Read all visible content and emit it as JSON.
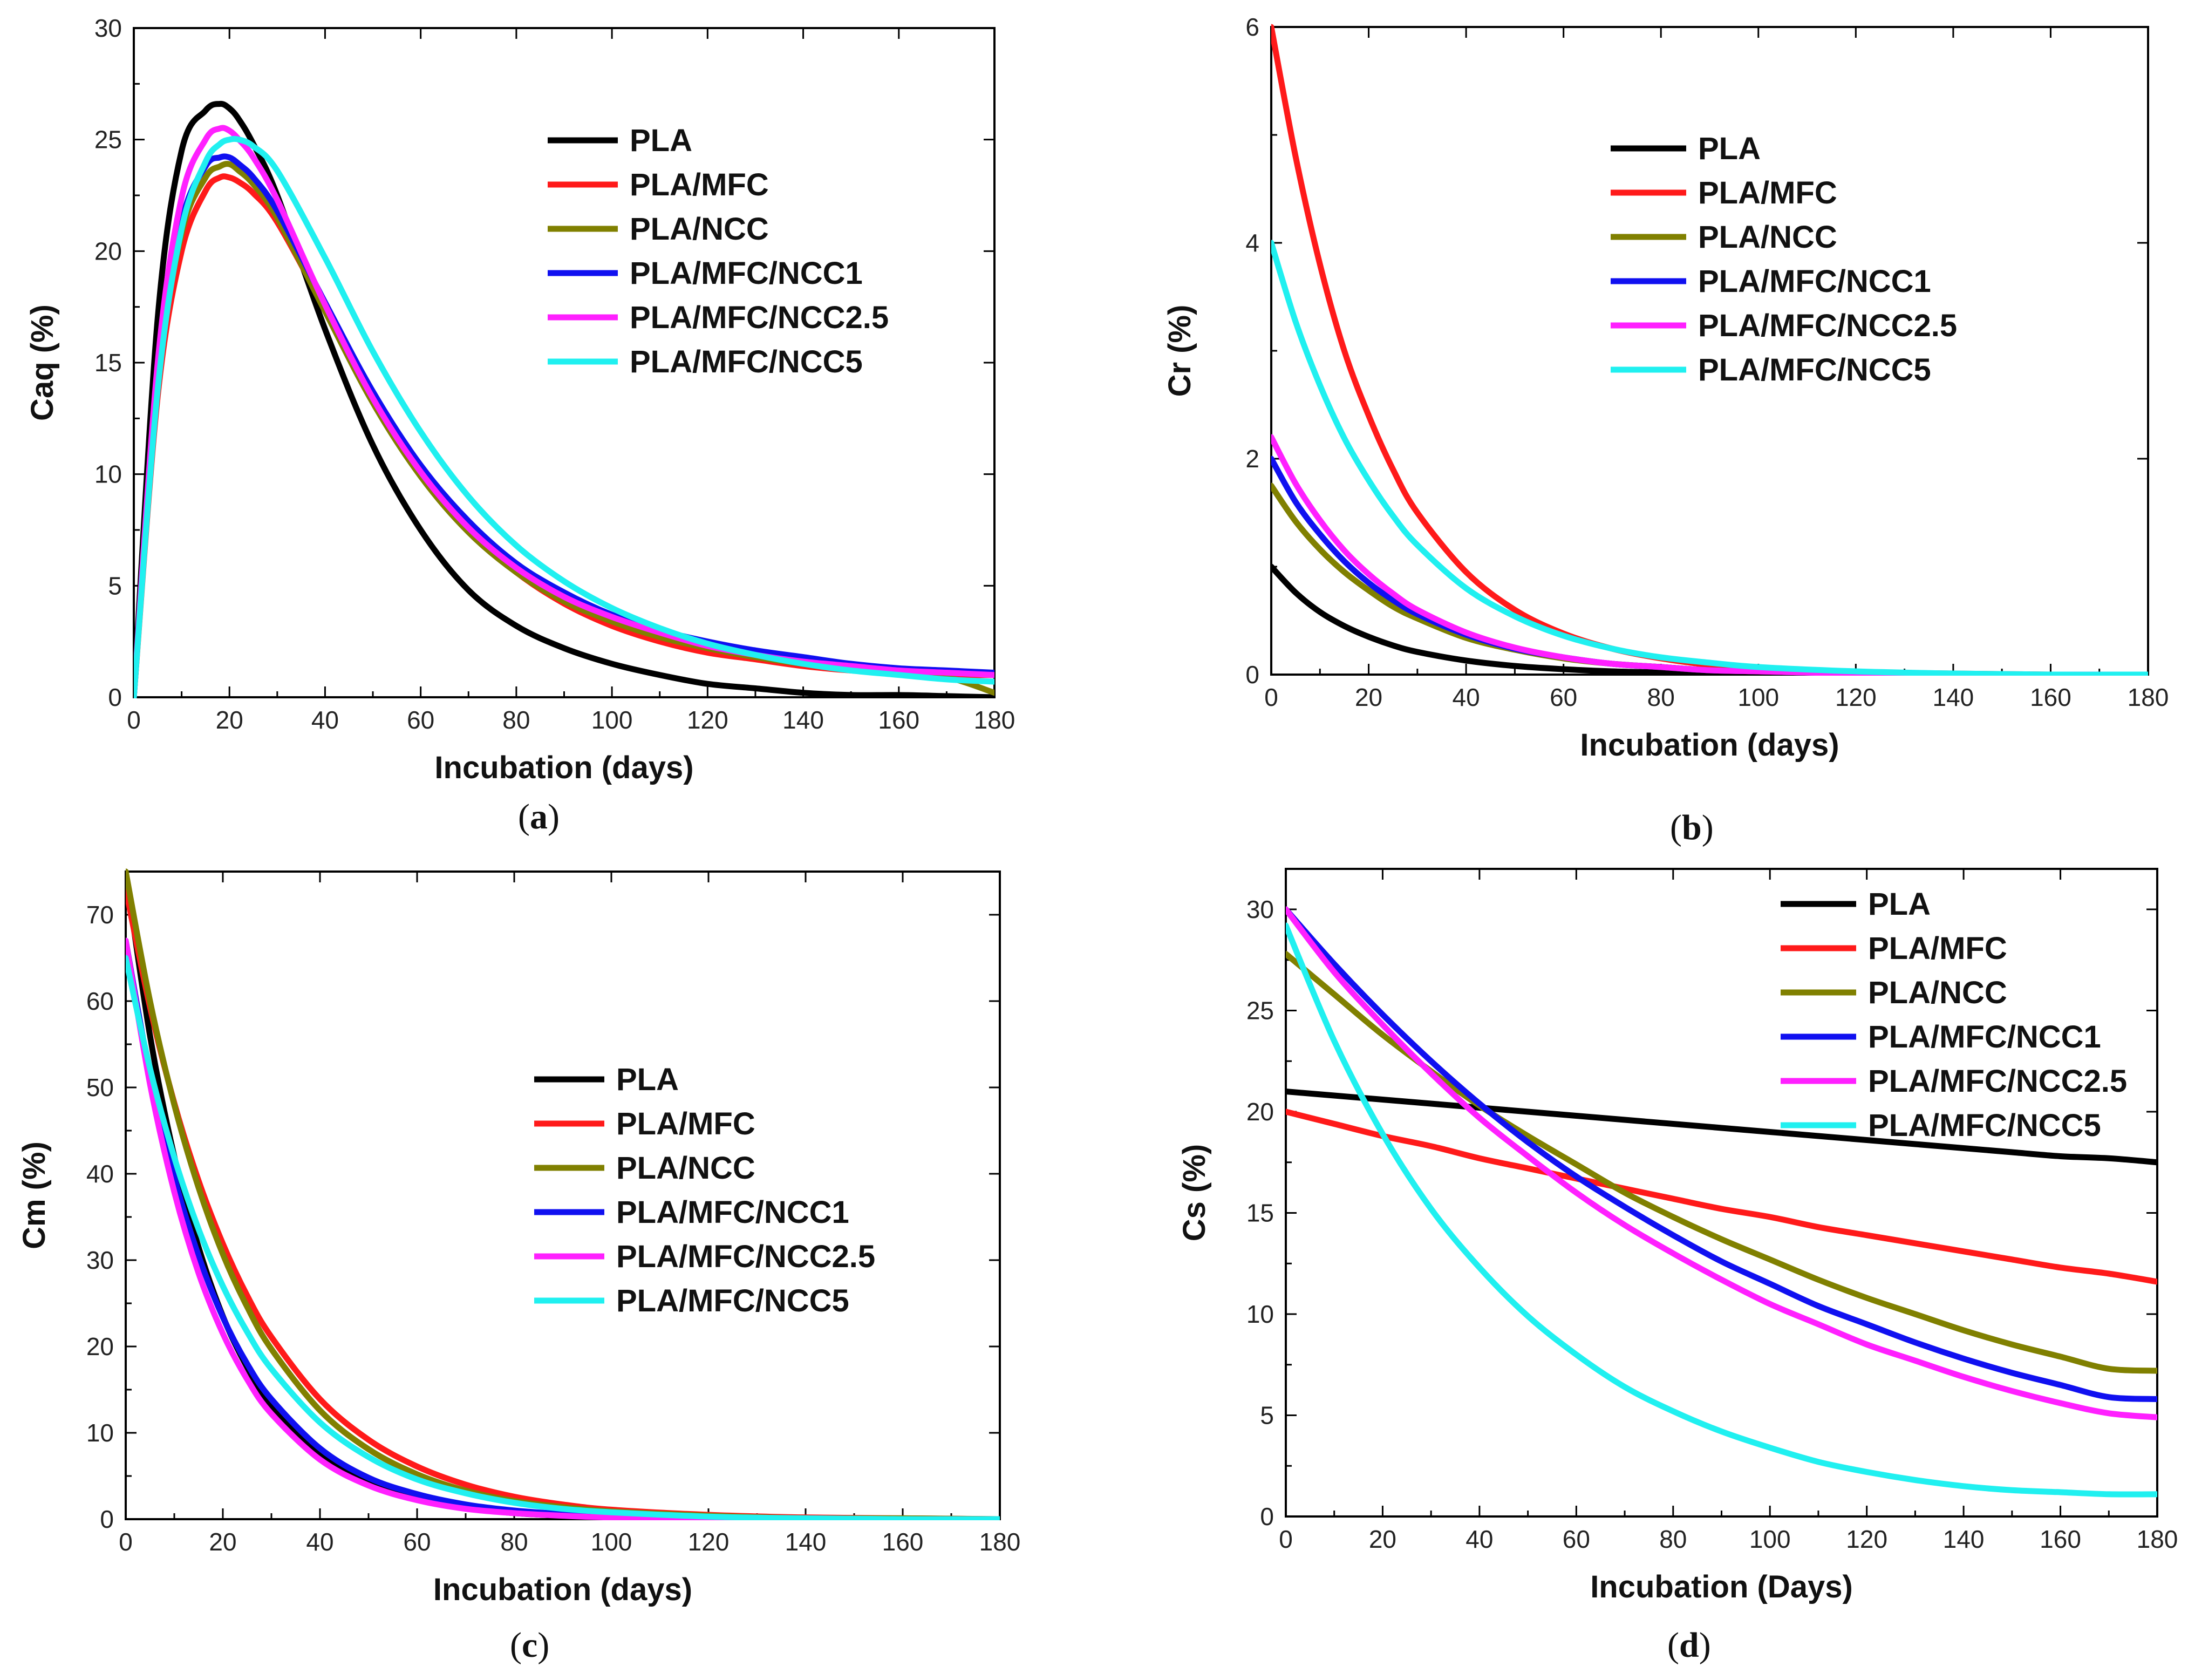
{
  "colors": {
    "PLA": "#000000",
    "PLA/MFC": "#ff1a1a",
    "PLA/NCC": "#808000",
    "PLA/MFC/NCC1": "#1010f0",
    "PLA/MFC/NCC2.5": "#ff20ff",
    "PLA/MFC/NCC5": "#20f0f0"
  },
  "chart_data": [
    {
      "panel": "a",
      "panel_label": "a",
      "type": "line",
      "xlabel": "Incubation (days)",
      "ylabel": "Caq (%)",
      "xlim": [
        0,
        180
      ],
      "ylim": [
        0,
        30
      ],
      "xticks": [
        0,
        20,
        40,
        60,
        80,
        100,
        120,
        140,
        160,
        180
      ],
      "yticks": [
        0,
        5,
        10,
        15,
        20,
        25,
        30
      ],
      "grid": false,
      "legend_position": "top-right",
      "x": [
        0,
        5,
        10,
        15,
        18,
        20,
        22,
        25,
        30,
        40,
        50,
        60,
        70,
        80,
        90,
        100,
        110,
        120,
        130,
        140,
        150,
        160,
        170,
        180
      ],
      "series": [
        {
          "name": "PLA",
          "values": [
            0,
            17,
            24.5,
            26.3,
            26.6,
            26.4,
            25.9,
            24.8,
            22.5,
            16.5,
            11.3,
            7.5,
            4.8,
            3.2,
            2.2,
            1.5,
            1.0,
            0.6,
            0.4,
            0.2,
            0.1,
            0.1,
            0.05,
            0
          ]
        },
        {
          "name": "PLA/MFC",
          "values": [
            0,
            13.5,
            20,
            22.7,
            23.3,
            23.3,
            23.1,
            22.6,
            21.3,
            17.4,
            13.4,
            10.1,
            7.5,
            5.6,
            4.2,
            3.2,
            2.5,
            2.0,
            1.7,
            1.4,
            1.2,
            1.1,
            1.0,
            1.0
          ]
        },
        {
          "name": "PLA/NCC",
          "values": [
            0,
            14,
            20.8,
            23.3,
            23.8,
            23.9,
            23.6,
            23.0,
            21.5,
            17.3,
            13.2,
            9.9,
            7.4,
            5.6,
            4.3,
            3.4,
            2.7,
            2.2,
            1.8,
            1.5,
            1.3,
            1.1,
            0.9,
            0.2
          ]
        },
        {
          "name": "PLA/MFC/NCC1",
          "values": [
            0,
            14.3,
            21.3,
            23.8,
            24.2,
            24.2,
            23.9,
            23.3,
            21.8,
            17.7,
            13.7,
            10.4,
            7.9,
            6.0,
            4.7,
            3.7,
            3.0,
            2.5,
            2.1,
            1.8,
            1.5,
            1.3,
            1.2,
            1.1
          ]
        },
        {
          "name": "PLA/MFC/NCC2.5",
          "values": [
            0,
            15,
            22.4,
            25.0,
            25.5,
            25.4,
            25.0,
            24.2,
            22.3,
            17.6,
            13.4,
            10.1,
            7.6,
            5.8,
            4.5,
            3.6,
            2.9,
            2.3,
            1.9,
            1.6,
            1.4,
            1.2,
            1.1,
            1.0
          ]
        },
        {
          "name": "PLA/MFC/NCC5",
          "values": [
            0,
            13.8,
            21.0,
            24.0,
            24.8,
            25.0,
            25.0,
            24.7,
            23.6,
            19.7,
            15.5,
            11.9,
            9.0,
            6.8,
            5.2,
            4.0,
            3.1,
            2.4,
            1.9,
            1.5,
            1.2,
            1.0,
            0.8,
            0.7
          ]
        }
      ]
    },
    {
      "panel": "b",
      "panel_label": "b",
      "type": "line",
      "xlabel": "Incubation (days)",
      "ylabel": "Cr (%)",
      "xlim": [
        0,
        180
      ],
      "ylim": [
        0,
        6
      ],
      "xticks": [
        0,
        20,
        40,
        60,
        80,
        100,
        120,
        140,
        160,
        180
      ],
      "yticks": [
        0,
        2,
        4,
        6
      ],
      "grid": false,
      "legend_position": "top-right",
      "x": [
        0,
        5,
        10,
        15,
        20,
        25,
        30,
        40,
        50,
        60,
        70,
        80,
        90,
        100,
        120,
        140,
        160,
        180
      ],
      "series": [
        {
          "name": "PLA",
          "values": [
            1.0,
            0.76,
            0.58,
            0.45,
            0.35,
            0.27,
            0.21,
            0.13,
            0.08,
            0.05,
            0.03,
            0.02,
            0.01,
            0.01,
            0,
            0,
            0,
            0
          ]
        },
        {
          "name": "PLA/MFC",
          "values": [
            6.0,
            4.8,
            3.8,
            3.0,
            2.4,
            1.9,
            1.5,
            0.95,
            0.6,
            0.38,
            0.24,
            0.15,
            0.09,
            0.06,
            0.02,
            0.01,
            0,
            0
          ]
        },
        {
          "name": "PLA/NCC",
          "values": [
            1.75,
            1.42,
            1.16,
            0.95,
            0.78,
            0.63,
            0.52,
            0.34,
            0.23,
            0.15,
            0.1,
            0.07,
            0.04,
            0.03,
            0.01,
            0,
            0,
            0
          ]
        },
        {
          "name": "PLA/MFC/NCC1",
          "values": [
            2.0,
            1.6,
            1.3,
            1.05,
            0.85,
            0.69,
            0.56,
            0.37,
            0.24,
            0.16,
            0.1,
            0.07,
            0.04,
            0.03,
            0.01,
            0,
            0,
            0
          ]
        },
        {
          "name": "PLA/MFC/NCC2.5",
          "values": [
            2.2,
            1.77,
            1.43,
            1.15,
            0.93,
            0.75,
            0.6,
            0.39,
            0.25,
            0.16,
            0.1,
            0.07,
            0.04,
            0.03,
            0.01,
            0,
            0,
            0
          ]
        },
        {
          "name": "PLA/MFC/NCC5",
          "values": [
            4.0,
            3.27,
            2.68,
            2.19,
            1.8,
            1.47,
            1.2,
            0.8,
            0.54,
            0.36,
            0.24,
            0.16,
            0.11,
            0.07,
            0.03,
            0.01,
            0,
            0
          ]
        }
      ]
    },
    {
      "panel": "c",
      "panel_label": "c",
      "type": "line",
      "xlabel": "Incubation (days)",
      "ylabel": "Cm (%)",
      "xlim": [
        0,
        180
      ],
      "ylim": [
        0,
        75
      ],
      "xticks": [
        0,
        20,
        40,
        60,
        80,
        100,
        120,
        140,
        160,
        180
      ],
      "yticks": [
        0,
        10,
        20,
        30,
        40,
        50,
        60,
        70
      ],
      "grid": false,
      "legend_position": "center-right",
      "x": [
        0,
        5,
        10,
        15,
        20,
        25,
        30,
        40,
        50,
        60,
        70,
        80,
        90,
        100,
        120,
        140,
        160,
        180
      ],
      "series": [
        {
          "name": "PLA",
          "values": [
            75,
            56,
            42,
            31.5,
            23.5,
            17.6,
            13.2,
            7.4,
            4.1,
            2.3,
            1.3,
            0.7,
            0.4,
            0.2,
            0.1,
            0,
            0,
            0
          ]
        },
        {
          "name": "PLA/MFC",
          "values": [
            73,
            59.3,
            48.2,
            39.2,
            31.9,
            25.9,
            21.1,
            13.9,
            9.2,
            6.1,
            4.0,
            2.6,
            1.7,
            1.1,
            0.5,
            0.2,
            0.1,
            0
          ]
        },
        {
          "name": "PLA/NCC",
          "values": [
            75,
            60,
            48,
            38.4,
            30.7,
            24.6,
            19.7,
            12.6,
            8.1,
            5.2,
            3.3,
            2.1,
            1.4,
            0.9,
            0.4,
            0.1,
            0.1,
            0
          ]
        },
        {
          "name": "PLA/MFC/NCC1",
          "values": [
            67,
            51.5,
            39.6,
            30.5,
            23.4,
            18,
            13.9,
            8.2,
            4.8,
            2.9,
            1.7,
            1.0,
            0.6,
            0.3,
            0.1,
            0,
            0,
            0
          ]
        },
        {
          "name": "PLA/MFC/NCC2.5",
          "values": [
            67,
            50.4,
            37.9,
            28.5,
            21.5,
            16.2,
            12.2,
            6.9,
            3.9,
            2.2,
            1.2,
            0.7,
            0.4,
            0.2,
            0.1,
            0,
            0,
            0
          ]
        },
        {
          "name": "PLA/MFC/NCC5",
          "values": [
            65,
            52.2,
            41.9,
            33.6,
            27,
            21.7,
            17.4,
            11.2,
            7.2,
            4.6,
            3.0,
            1.9,
            1.2,
            0.8,
            0.3,
            0.1,
            0,
            0
          ]
        }
      ]
    },
    {
      "panel": "d",
      "panel_label": "d",
      "type": "line",
      "xlabel": "Incubation (Days)",
      "ylabel": "Cs (%)",
      "xlim": [
        0,
        180
      ],
      "ylim": [
        0,
        32
      ],
      "xticks": [
        0,
        20,
        40,
        60,
        80,
        100,
        120,
        140,
        160,
        180
      ],
      "yticks": [
        0,
        5,
        10,
        15,
        20,
        25,
        30
      ],
      "grid": false,
      "legend_position": "top-right",
      "x": [
        0,
        10,
        20,
        30,
        40,
        50,
        60,
        70,
        80,
        90,
        100,
        110,
        120,
        130,
        140,
        150,
        160,
        170,
        180
      ],
      "series": [
        {
          "name": "PLA",
          "values": [
            21,
            20.8,
            20.6,
            20.4,
            20.2,
            20.0,
            19.8,
            19.6,
            19.4,
            19.2,
            19.0,
            18.8,
            18.6,
            18.4,
            18.2,
            18.0,
            17.8,
            17.7,
            17.5
          ]
        },
        {
          "name": "PLA/MFC",
          "values": [
            20,
            19.4,
            18.8,
            18.3,
            17.7,
            17.2,
            16.7,
            16.2,
            15.7,
            15.2,
            14.8,
            14.3,
            13.9,
            13.5,
            13.1,
            12.7,
            12.3,
            12.0,
            11.6
          ]
        },
        {
          "name": "PLA/NCC",
          "values": [
            27.8,
            25.8,
            23.8,
            22.0,
            20.3,
            18.8,
            17.4,
            16.0,
            14.8,
            13.7,
            12.7,
            11.7,
            10.8,
            10.0,
            9.2,
            8.5,
            7.9,
            7.3,
            7.2
          ]
        },
        {
          "name": "PLA/MFC/NCC1",
          "values": [
            30,
            27.3,
            24.8,
            22.5,
            20.4,
            18.5,
            16.8,
            15.3,
            13.9,
            12.6,
            11.5,
            10.4,
            9.5,
            8.6,
            7.8,
            7.1,
            6.5,
            5.9,
            5.8
          ]
        },
        {
          "name": "PLA/MFC/NCC2.5",
          "values": [
            30,
            26.9,
            24.3,
            21.9,
            19.7,
            17.8,
            16.0,
            14.4,
            13.0,
            11.7,
            10.5,
            9.5,
            8.5,
            7.7,
            6.9,
            6.2,
            5.6,
            5.1,
            4.9
          ]
        },
        {
          "name": "PLA/MFC/NCC5",
          "values": [
            29.2,
            23.5,
            18.9,
            15.2,
            12.3,
            9.9,
            8.0,
            6.4,
            5.2,
            4.2,
            3.4,
            2.7,
            2.2,
            1.8,
            1.5,
            1.3,
            1.2,
            1.1,
            1.1
          ]
        }
      ]
    }
  ]
}
